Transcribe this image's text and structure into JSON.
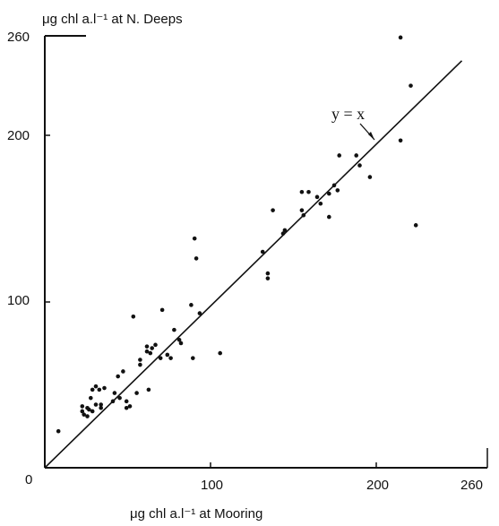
{
  "chart_data": {
    "type": "scatter",
    "xlabel": "μg chl a.l⁻¹ at Mooring",
    "ylabel": "μg chl a.l⁻¹ at N. Deeps",
    "xlim": [
      0,
      260
    ],
    "ylim": [
      0,
      260
    ],
    "x_ticks": [
      "0",
      "100",
      "200",
      "260"
    ],
    "y_ticks": [
      "100",
      "200",
      "260"
    ],
    "grid": false,
    "reference_line": {
      "label": "y = x",
      "slope": 1,
      "intercept": 0
    },
    "points": [
      [
        8,
        22
      ],
      [
        22,
        34
      ],
      [
        22,
        37
      ],
      [
        23,
        32
      ],
      [
        25,
        31
      ],
      [
        25,
        36
      ],
      [
        26,
        35
      ],
      [
        27,
        42
      ],
      [
        28,
        47
      ],
      [
        28,
        34
      ],
      [
        30,
        38
      ],
      [
        30,
        49
      ],
      [
        32,
        47
      ],
      [
        33,
        38
      ],
      [
        33,
        36
      ],
      [
        35,
        48
      ],
      [
        40,
        40
      ],
      [
        41,
        45
      ],
      [
        43,
        55
      ],
      [
        44,
        42
      ],
      [
        46,
        58
      ],
      [
        48,
        40
      ],
      [
        48,
        36
      ],
      [
        50,
        37
      ],
      [
        52,
        91
      ],
      [
        54,
        45
      ],
      [
        56,
        62
      ],
      [
        56,
        65
      ],
      [
        60,
        70
      ],
      [
        60,
        73
      ],
      [
        61,
        47
      ],
      [
        62,
        69
      ],
      [
        63,
        72
      ],
      [
        65,
        74
      ],
      [
        68,
        66
      ],
      [
        69,
        95
      ],
      [
        72,
        68
      ],
      [
        74,
        66
      ],
      [
        76,
        83
      ],
      [
        79,
        77
      ],
      [
        80,
        75
      ],
      [
        86,
        98
      ],
      [
        87,
        66
      ],
      [
        88,
        138
      ],
      [
        89,
        126
      ],
      [
        91,
        93
      ],
      [
        103,
        69
      ],
      [
        128,
        130
      ],
      [
        131,
        117
      ],
      [
        131,
        114
      ],
      [
        134,
        155
      ],
      [
        140,
        141
      ],
      [
        141,
        143
      ],
      [
        151,
        166
      ],
      [
        151,
        155
      ],
      [
        152,
        152
      ],
      [
        155,
        166
      ],
      [
        160,
        163
      ],
      [
        162,
        159
      ],
      [
        167,
        151
      ],
      [
        167,
        165
      ],
      [
        170,
        170
      ],
      [
        172,
        167
      ],
      [
        173,
        188
      ],
      [
        183,
        188
      ],
      [
        185,
        182
      ],
      [
        191,
        175
      ],
      [
        209,
        259
      ],
      [
        209,
        197
      ],
      [
        215,
        230
      ],
      [
        218,
        146
      ]
    ]
  }
}
